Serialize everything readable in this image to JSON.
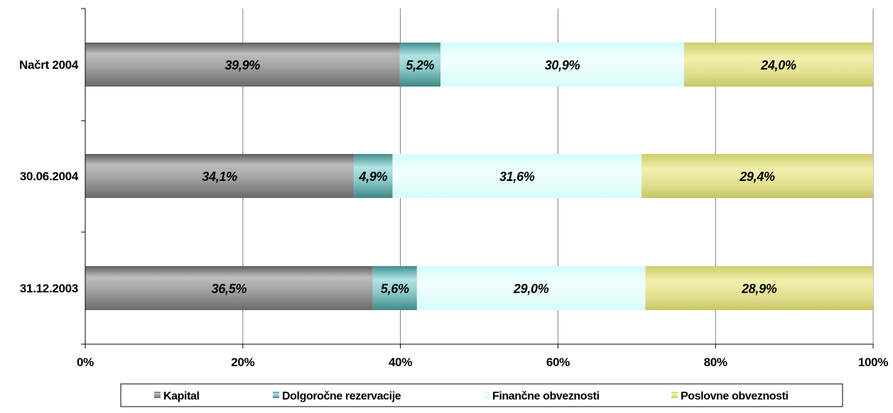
{
  "chart_data": {
    "type": "bar",
    "orientation": "horizontal",
    "stacked": "percent",
    "categories": [
      "Načrt 2004",
      "30.06.2004",
      "31.12.2003"
    ],
    "series": [
      {
        "name": "Kapital",
        "values": [
          39.9,
          34.1,
          36.5
        ],
        "labels": [
          "39,9%",
          "34,1%",
          "36,5%"
        ],
        "color": "#9a9a9a"
      },
      {
        "name": "Dolgoročne rezervacije",
        "values": [
          5.2,
          4.9,
          5.6
        ],
        "labels": [
          "5,2%",
          "4,9%",
          "5,6%"
        ],
        "color": "#8fc7c7"
      },
      {
        "name": "Finančne obveznosti",
        "values": [
          30.9,
          31.6,
          29.0
        ],
        "labels": [
          "30,9%",
          "31,6%",
          "29,0%"
        ],
        "color": "#e6fefe"
      },
      {
        "name": "Poslovne obveznosti",
        "values": [
          24.0,
          29.4,
          28.9
        ],
        "labels": [
          "24,0%",
          "29,4%",
          "28,9%"
        ],
        "color": "#e8e69a"
      }
    ],
    "xlim": [
      0,
      100
    ],
    "xticks": [
      "0%",
      "20%",
      "40%",
      "60%",
      "80%",
      "100%"
    ],
    "grid": true,
    "legend_position": "bottom",
    "title": "",
    "xlabel": "",
    "ylabel": ""
  }
}
